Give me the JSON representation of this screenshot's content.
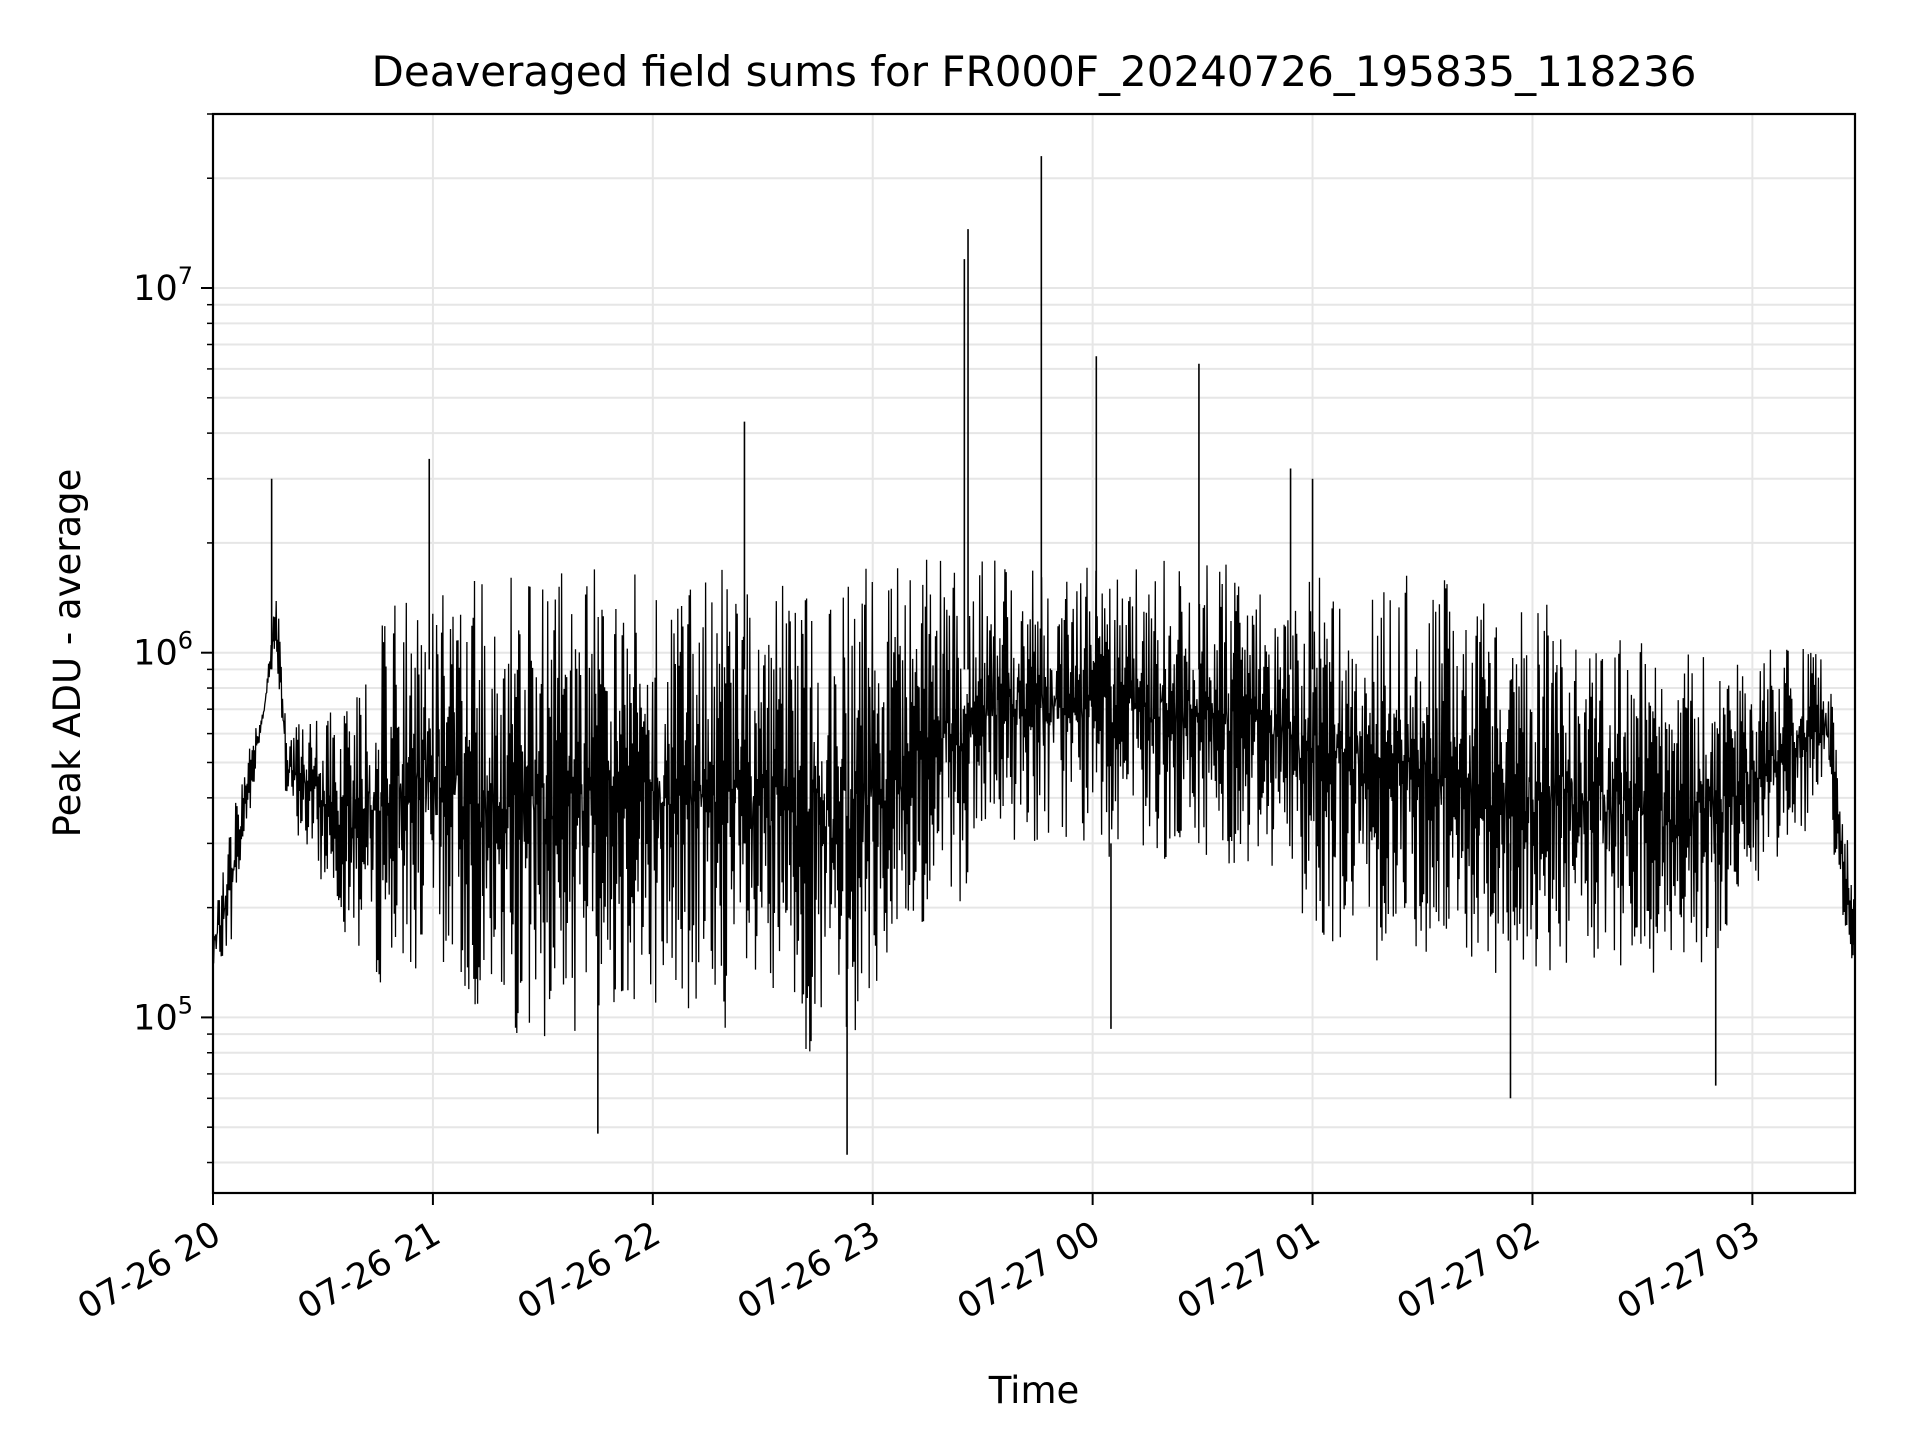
{
  "chart_data": {
    "type": "line",
    "title": "Deaveraged field sums for FR000F_20240726_195835_118236",
    "xlabel": "Time",
    "ylabel": "Peak ADU - average",
    "x_scale": "time",
    "y_scale": "log",
    "xlim": [
      "2024-07-26 20:00",
      "2024-07-27 03:28"
    ],
    "ylim": [
      33000,
      30000000
    ],
    "grid": true,
    "line_color": "#000000",
    "grid_color": "#e6e6e6",
    "x_ticks": [
      {
        "t": "2024-07-26 20:00",
        "label": "07-26 20"
      },
      {
        "t": "2024-07-26 21:00",
        "label": "07-26 21"
      },
      {
        "t": "2024-07-26 22:00",
        "label": "07-26 22"
      },
      {
        "t": "2024-07-26 23:00",
        "label": "07-26 23"
      },
      {
        "t": "2024-07-27 00:00",
        "label": "07-27 00"
      },
      {
        "t": "2024-07-27 01:00",
        "label": "07-27 01"
      },
      {
        "t": "2024-07-27 02:00",
        "label": "07-27 02"
      },
      {
        "t": "2024-07-27 03:00",
        "label": "07-27 03"
      }
    ],
    "y_ticks": [
      {
        "value": 100000,
        "base": "10",
        "exp": "5"
      },
      {
        "value": 1000000,
        "base": "10",
        "exp": "6"
      },
      {
        "value": 10000000,
        "base": "10",
        "exp": "7"
      }
    ],
    "series": [
      {
        "x": [
          "2024-07-26 20:00",
          "2024-07-26 20:05",
          "2024-07-26 20:10",
          "2024-07-26 20:14",
          "2024-07-26 20:17",
          "2024-07-26 20:20",
          "2024-07-26 20:25",
          "2024-07-26 20:30",
          "2024-07-26 20:35",
          "2024-07-26 20:40",
          "2024-07-26 20:45",
          "2024-07-26 20:50",
          "2024-07-26 20:55",
          "2024-07-26 21:00",
          "2024-07-26 21:10",
          "2024-07-26 21:20",
          "2024-07-26 21:30",
          "2024-07-26 21:40",
          "2024-07-26 21:50",
          "2024-07-26 22:00",
          "2024-07-26 22:10",
          "2024-07-26 22:20",
          "2024-07-26 22:30",
          "2024-07-26 22:40",
          "2024-07-26 22:50",
          "2024-07-26 23:00",
          "2024-07-26 23:10",
          "2024-07-26 23:20",
          "2024-07-26 23:30",
          "2024-07-26 23:40",
          "2024-07-26 23:50",
          "2024-07-27 00:00",
          "2024-07-27 00:10",
          "2024-07-27 00:20",
          "2024-07-27 00:30",
          "2024-07-27 00:40",
          "2024-07-27 00:50",
          "2024-07-27 01:00",
          "2024-07-27 01:10",
          "2024-07-27 01:20",
          "2024-07-27 01:30",
          "2024-07-27 01:40",
          "2024-07-27 01:50",
          "2024-07-27 02:00",
          "2024-07-27 02:10",
          "2024-07-27 02:20",
          "2024-07-27 02:30",
          "2024-07-27 02:40",
          "2024-07-27 02:50",
          "2024-07-27 03:00",
          "2024-07-27 03:10",
          "2024-07-27 03:20",
          "2024-07-27 03:28"
        ],
        "lower": [
          130000,
          160000,
          350000,
          700000,
          1000000,
          350000,
          280000,
          220000,
          180000,
          140000,
          120000,
          120000,
          130000,
          140000,
          100000,
          90000,
          80000,
          90000,
          100000,
          110000,
          90000,
          90000,
          80000,
          80000,
          70000,
          110000,
          130000,
          180000,
          250000,
          300000,
          300000,
          280000,
          260000,
          260000,
          260000,
          250000,
          250000,
          170000,
          150000,
          140000,
          140000,
          130000,
          120000,
          120000,
          130000,
          120000,
          120000,
          120000,
          140000,
          200000,
          300000,
          350000,
          120000
        ],
        "upper": [
          180000,
          350000,
          600000,
          700000,
          1600000,
          700000,
          700000,
          700000,
          700000,
          900000,
          1300000,
          1400000,
          1500000,
          1600000,
          1600000,
          1600000,
          1700000,
          1700000,
          1700000,
          1700000,
          1700000,
          1700000,
          1700000,
          1700000,
          1700000,
          1700000,
          1800000,
          1800000,
          1800000,
          1800000,
          1800000,
          1800000,
          1800000,
          1800000,
          1800000,
          1800000,
          1700000,
          1700000,
          1700000,
          1700000,
          1700000,
          1600000,
          1500000,
          1400000,
          1300000,
          1200000,
          1100000,
          1000000,
          1000000,
          1000000,
          1100000,
          1100000,
          200000
        ]
      }
    ],
    "spikes": [
      {
        "t": "2024-07-26 20:16",
        "value": 3000000
      },
      {
        "t": "2024-07-26 20:59",
        "value": 3400000
      },
      {
        "t": "2024-07-26 21:45",
        "value": 48000
      },
      {
        "t": "2024-07-26 22:25",
        "value": 4300000
      },
      {
        "t": "2024-07-26 22:53",
        "value": 42000
      },
      {
        "t": "2024-07-26 23:25",
        "value": 12000000
      },
      {
        "t": "2024-07-26 23:26",
        "value": 14500000
      },
      {
        "t": "2024-07-26 23:46",
        "value": 23000000
      },
      {
        "t": "2024-07-27 00:01",
        "value": 6500000
      },
      {
        "t": "2024-07-27 00:05",
        "value": 93000
      },
      {
        "t": "2024-07-27 00:29",
        "value": 6200000
      },
      {
        "t": "2024-07-27 00:54",
        "value": 3200000
      },
      {
        "t": "2024-07-27 01:00",
        "value": 3000000
      },
      {
        "t": "2024-07-27 01:54",
        "value": 60000
      },
      {
        "t": "2024-07-27 02:50",
        "value": 65000
      }
    ]
  }
}
